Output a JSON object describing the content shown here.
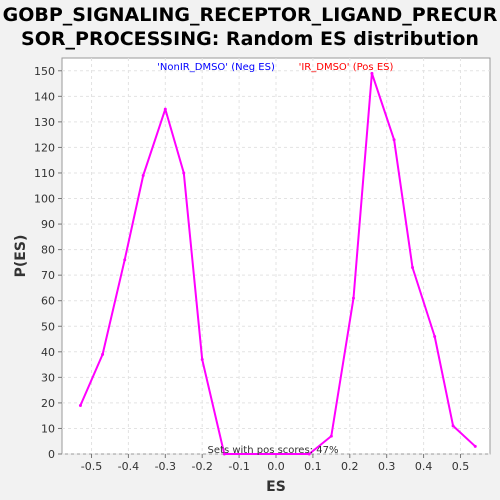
{
  "chart_data": {
    "type": "line",
    "title_lines": [
      "GOBP_SIGNALING_RECEPTOR_LIGAND_PRECUR",
      "SOR_PROCESSING: Random ES distribution"
    ],
    "xlabel": "ES",
    "ylabel": "P(ES)",
    "xlim": [
      -0.58,
      0.58
    ],
    "ylim": [
      0,
      155
    ],
    "x_ticks": [
      -0.5,
      -0.4,
      -0.3,
      -0.2,
      -0.1,
      0.0,
      0.1,
      0.2,
      0.3,
      0.4,
      0.5
    ],
    "x_tick_labels": [
      "-0.5",
      "-0.4",
      "-0.3",
      "-0.2",
      "-0.1",
      "0.0",
      "0.1",
      "0.2",
      "0.3",
      "0.4",
      "0.5"
    ],
    "y_ticks": [
      0,
      10,
      20,
      30,
      40,
      50,
      60,
      70,
      80,
      90,
      100,
      110,
      120,
      130,
      140,
      150
    ],
    "grid": true,
    "line_color": "#ff00ff",
    "series": [
      {
        "values": [
          [
            -0.53,
            19
          ],
          [
            -0.47,
            39
          ],
          [
            -0.41,
            76
          ],
          [
            -0.36,
            109
          ],
          [
            -0.3,
            135
          ],
          [
            -0.25,
            110
          ],
          [
            -0.2,
            37
          ],
          [
            -0.14,
            0
          ],
          [
            0.09,
            0
          ],
          [
            0.15,
            7
          ],
          [
            0.21,
            61
          ],
          [
            0.26,
            149
          ],
          [
            0.32,
            123
          ],
          [
            0.37,
            73
          ],
          [
            0.43,
            46
          ],
          [
            0.48,
            11
          ],
          [
            0.54,
            3
          ]
        ]
      }
    ],
    "annotations": {
      "neg_label": "'NonIR_DMSO' (Neg ES)",
      "neg_color": "#0000ff",
      "pos_label": "'IR_DMSO' (Pos ES)",
      "pos_color": "#ff0000",
      "footer": "Sets with pos scores: 47%"
    }
  }
}
